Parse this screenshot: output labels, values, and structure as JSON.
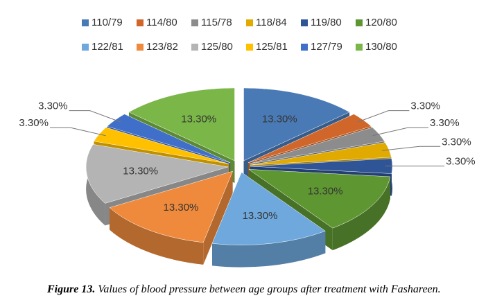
{
  "chart_data": {
    "type": "pie3d",
    "categories": [
      "110/79",
      "114/80",
      "115/78",
      "118/84",
      "119/80",
      "120/80",
      "122/81",
      "123/82",
      "125/80",
      "125/81",
      "127/79",
      "130/80"
    ],
    "values": [
      13.3,
      3.3,
      3.3,
      3.3,
      3.3,
      13.3,
      13.3,
      13.3,
      13.3,
      3.3,
      3.3,
      13.3
    ],
    "value_labels": [
      "13.30%",
      "3.30%",
      "3.30%",
      "3.30%",
      "3.30%",
      "13.30%",
      "13.30%",
      "13.30%",
      "13.30%",
      "3.30%",
      "3.30%",
      "13.30%"
    ],
    "colors": [
      "#4a7ab5",
      "#d0662a",
      "#8c8c8c",
      "#e0aa00",
      "#2f5597",
      "#5e9632",
      "#6fa8dc",
      "#ef8a3c",
      "#b4b4b4",
      "#ffc000",
      "#3f6fc8",
      "#7ab648"
    ],
    "legend": "top"
  },
  "caption_label": "Figure 13.",
  "caption": "Values of blood pressure between age groups after treatment with Fashareen."
}
